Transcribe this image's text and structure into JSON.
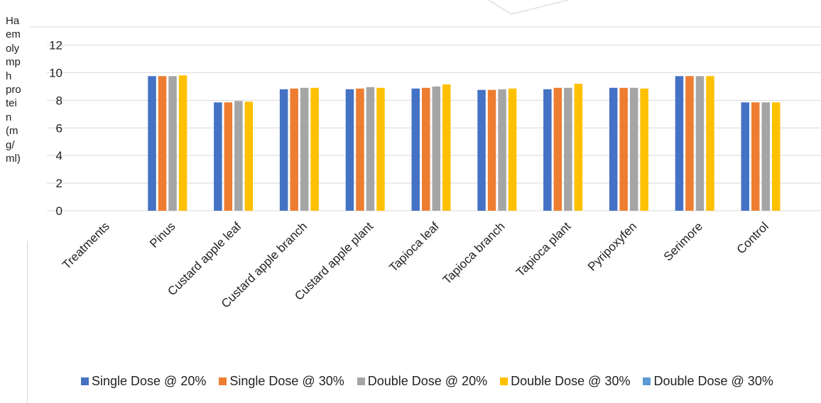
{
  "chart_data": {
    "type": "bar",
    "ylabel_lines": [
      "Ha",
      "em",
      "oly",
      "mp",
      "h",
      "pro",
      "tei",
      "n",
      "(m",
      "g/",
      "ml)"
    ],
    "ylim": [
      0,
      12
    ],
    "yticks": [
      "0",
      "2",
      "4",
      "6",
      "8",
      "10",
      "12"
    ],
    "categories": [
      "Treatments",
      "Pinus",
      "Custard apple leaf",
      "Custard apple branch",
      "Custard apple plant",
      "Tapioca leaf",
      "Tapioca branch",
      "Tapioca plant",
      "Pyripoxyfen",
      "Serimore",
      "Control"
    ],
    "series": [
      {
        "name": "Single Dose @ 20%",
        "color": "#4472c4",
        "values": [
          null,
          9.75,
          7.85,
          8.8,
          8.8,
          8.85,
          8.75,
          8.8,
          8.9,
          9.75,
          7.85
        ]
      },
      {
        "name": "Single Dose @ 30%",
        "color": "#ed7d31",
        "values": [
          null,
          9.75,
          7.85,
          8.85,
          8.85,
          8.9,
          8.75,
          8.9,
          8.9,
          9.75,
          7.85
        ]
      },
      {
        "name": "Double Dose @ 20%",
        "color": "#a5a5a5",
        "values": [
          null,
          9.75,
          7.95,
          8.9,
          8.95,
          9.0,
          8.8,
          8.9,
          8.9,
          9.75,
          7.85
        ]
      },
      {
        "name": "Double Dose @ 30%",
        "color": "#ffc000",
        "values": [
          null,
          9.8,
          7.9,
          8.9,
          8.9,
          9.15,
          8.85,
          9.2,
          8.85,
          9.75,
          7.85
        ]
      },
      {
        "name": "Double Dose @ 30%",
        "color": "#5b9bd5",
        "values": [
          null,
          null,
          null,
          null,
          null,
          null,
          null,
          null,
          null,
          null,
          null
        ]
      }
    ],
    "grid": true,
    "legend_position": "bottom"
  }
}
